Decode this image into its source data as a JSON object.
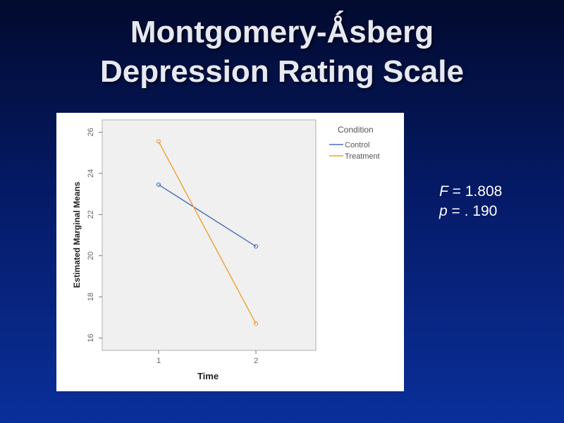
{
  "slide": {
    "title_line1": "Montgomery-Ǻsberg",
    "title_line2": "Depression Rating Scale"
  },
  "stats": {
    "f_label": "F",
    "f_text": " = 1.808",
    "p_label": "p",
    "p_text": " = . 190"
  },
  "colors": {
    "control": "#4a6fb5",
    "treatment": "#f0a030",
    "plot_background": "#f0f0f0"
  },
  "chart_data": {
    "type": "line",
    "title": "",
    "xlabel": "Time",
    "ylabel": "Estimated Marginal Means",
    "categories": [
      "1",
      "2"
    ],
    "ylim": [
      15.4,
      26.6
    ],
    "yticks": [
      16,
      18,
      20,
      22,
      24,
      26
    ],
    "grid": false,
    "legend": {
      "title": "Condition",
      "position": "top-right"
    },
    "series": [
      {
        "name": "Control",
        "values": [
          23.45,
          20.45
        ]
      },
      {
        "name": "Treatment",
        "values": [
          25.55,
          16.7
        ]
      }
    ]
  }
}
